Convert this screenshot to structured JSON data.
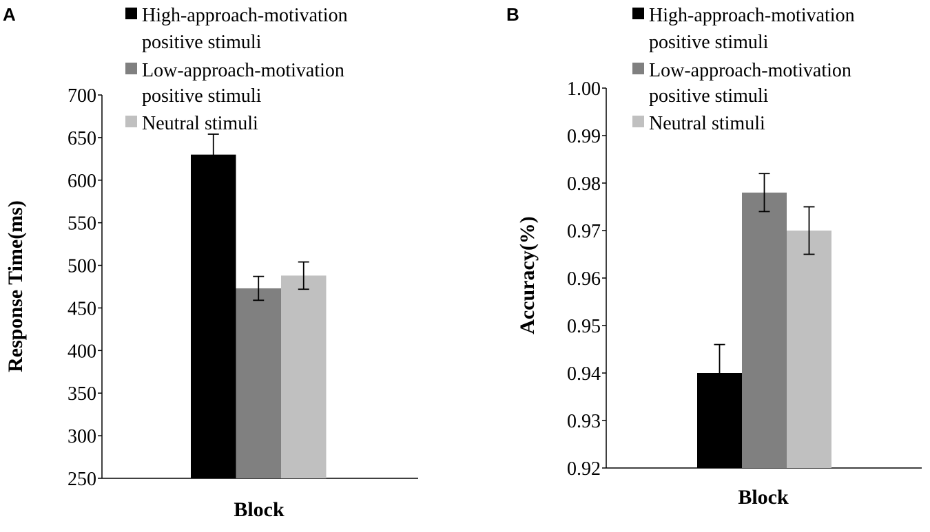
{
  "chart_data": [
    {
      "panel": "A",
      "type": "bar",
      "categories": [
        "Block"
      ],
      "xlabel": "Block",
      "ylabel": "Response Time(ms)",
      "ylim": [
        250,
        700
      ],
      "yticks": [
        "250",
        "300",
        "350",
        "400",
        "450",
        "500",
        "550",
        "600",
        "650",
        "700"
      ],
      "legend": {
        "placement": "top",
        "entries": [
          [
            "High-approach-motivation",
            "positive stimuli"
          ],
          [
            "Low-approach-motivation",
            "positive stimuli"
          ],
          [
            "Neutral stimuli"
          ]
        ]
      },
      "series": [
        {
          "name": "High-approach-motivation positive stimuli",
          "color": "#000000",
          "values": [
            630
          ],
          "error": [
            24
          ]
        },
        {
          "name": "Low-approach-motivation positive stimuli",
          "color": "#808080",
          "values": [
            473
          ],
          "error": [
            14
          ]
        },
        {
          "name": "Neutral stimuli",
          "color": "#c0c0c0",
          "values": [
            488
          ],
          "error": [
            16
          ]
        }
      ]
    },
    {
      "panel": "B",
      "type": "bar",
      "categories": [
        "Block"
      ],
      "xlabel": "Block",
      "ylabel": "Accuracy(%)",
      "ylim": [
        0.92,
        1.0
      ],
      "yticks": [
        "0.92",
        "0.93",
        "0.94",
        "0.95",
        "0.96",
        "0.97",
        "0.98",
        "0.99",
        "1.00"
      ],
      "legend": {
        "placement": "top-right",
        "entries": [
          [
            "High-approach-motivation",
            "positive stimuli"
          ],
          [
            "Low-approach-motivation",
            "positive stimuli"
          ],
          [
            "Neutral stimuli"
          ]
        ]
      },
      "series": [
        {
          "name": "High-approach-motivation positive stimuli",
          "color": "#000000",
          "values": [
            0.94
          ],
          "error": [
            0.006
          ]
        },
        {
          "name": "Low-approach-motivation positive stimuli",
          "color": "#808080",
          "values": [
            0.978
          ],
          "error": [
            0.004
          ]
        },
        {
          "name": "Neutral stimuli",
          "color": "#c0c0c0",
          "values": [
            0.97
          ],
          "error": [
            0.005
          ]
        }
      ]
    }
  ]
}
